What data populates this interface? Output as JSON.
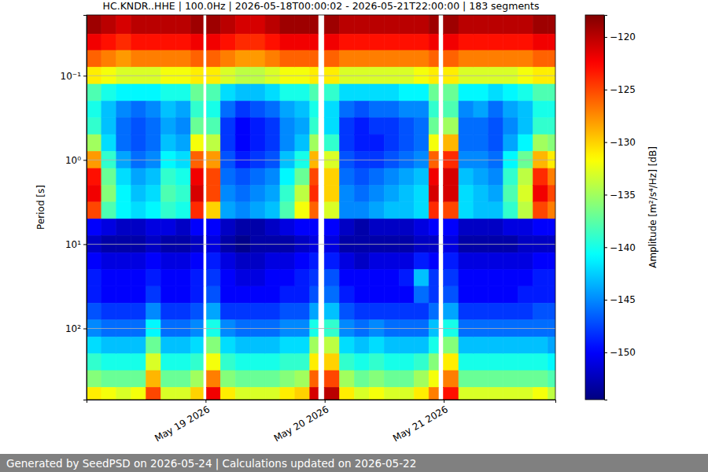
{
  "chart_data": {
    "type": "heatmap",
    "title": "HC.KNDR..HHE | 100.0Hz | 2026-05-18T00:00:02 - 2026-05-21T22:00:00 | 183 segments",
    "ylabel": "Period [s]",
    "footer": "Generated by SeedPSD on 2026-05-24 | Calculations updated on 2026-05-22",
    "log": "y",
    "grid": "y",
    "xlim": [
      "2026-05-18T00:00",
      "2026-05-21T22:30"
    ],
    "xticks": [
      {
        "value": "2026-05-19T00:00",
        "label": "May 19 2026"
      },
      {
        "value": "2026-05-20T00:00",
        "label": "May 20 2026"
      },
      {
        "value": "2026-05-21T00:00",
        "label": "May 21 2026"
      }
    ],
    "ylim": [
      0.019,
      700
    ],
    "yticks": [
      {
        "value": 0.1,
        "label": "10⁻¹"
      },
      {
        "value": 1,
        "label": "10⁰"
      },
      {
        "value": 10,
        "label": "10¹"
      },
      {
        "value": 100,
        "label": "10²"
      }
    ],
    "x": [
      "2026-05-18T00:00",
      "2026-05-18T03:00",
      "2026-05-18T06:00",
      "2026-05-18T09:00",
      "2026-05-18T12:00",
      "2026-05-18T15:00",
      "2026-05-18T18:00",
      "2026-05-18T21:00",
      "2026-05-18T23:30",
      "2026-05-19T00:10",
      "2026-05-19T03:00",
      "2026-05-19T06:00",
      "2026-05-19T09:00",
      "2026-05-19T12:00",
      "2026-05-19T15:00",
      "2026-05-19T18:00",
      "2026-05-19T21:00",
      "2026-05-19T22:40",
      "2026-05-19T23:55",
      "2026-05-20T03:00",
      "2026-05-20T06:00",
      "2026-05-20T09:00",
      "2026-05-20T12:00",
      "2026-05-20T15:00",
      "2026-05-20T18:00",
      "2026-05-20T21:00",
      "2026-05-20T22:55",
      "2026-05-20T23:55",
      "2026-05-21T03:00",
      "2026-05-21T06:00",
      "2026-05-21T09:00",
      "2026-05-21T12:00",
      "2026-05-21T15:00",
      "2026-05-21T18:00",
      "2026-05-21T21:00",
      "2026-05-21T22:30"
    ],
    "y": [
      0.019,
      0.032,
      0.05,
      0.079,
      0.126,
      0.2,
      0.316,
      0.5,
      0.79,
      1.26,
      2,
      3.16,
      5,
      7.9,
      12.6,
      20,
      31.6,
      50,
      79,
      126,
      200,
      316,
      500,
      700
    ],
    "values": [
      [
        -119,
        -122,
        -126,
        -131,
        -138,
        -140,
        -139,
        -135,
        -128,
        -123,
        -122,
        -125,
        -150,
        -152,
        -150,
        -149,
        -149,
        -147,
        -145,
        -142,
        -139,
        -136,
        -131
      ],
      [
        -120,
        -123,
        -127,
        -132,
        -140,
        -143,
        -143,
        -142,
        -139,
        -137,
        -136,
        -138,
        -151,
        -153,
        -151,
        -150,
        -150,
        -148,
        -146,
        -143,
        -140,
        -137,
        -132
      ],
      [
        -121,
        -124,
        -128,
        -133,
        -141,
        -145,
        -146,
        -146,
        -144,
        -142,
        -141,
        -141,
        -152,
        -153,
        -151,
        -150,
        -150,
        -148,
        -146,
        -143,
        -140,
        -137,
        -133
      ],
      [
        -120,
        -123,
        -127,
        -133,
        -141,
        -146,
        -147,
        -147,
        -146,
        -144,
        -143,
        -142,
        -152,
        -153,
        -151,
        -150,
        -150,
        -148,
        -146,
        -143,
        -140,
        -137,
        -132
      ],
      [
        -120,
        -123,
        -127,
        -133,
        -141,
        -145,
        -146,
        -146,
        -145,
        -143,
        -142,
        -141,
        -151,
        -152,
        -150,
        -149,
        -148,
        -145,
        -141,
        -137,
        -133,
        -129,
        -125
      ],
      [
        -120,
        -123,
        -127,
        -132,
        -140,
        -143,
        -144,
        -143,
        -141,
        -139,
        -138,
        -139,
        -151,
        -153,
        -151,
        -150,
        -150,
        -148,
        -146,
        -143,
        -140,
        -137,
        -133
      ],
      [
        -120,
        -123,
        -127,
        -132,
        -140,
        -144,
        -145,
        -144,
        -142,
        -140,
        -139,
        -140,
        -152,
        -153,
        -151,
        -150,
        -150,
        -148,
        -146,
        -143,
        -140,
        -137,
        -133
      ],
      [
        -119,
        -122,
        -126,
        -131,
        -137,
        -139,
        -137,
        -132,
        -126,
        -122,
        -121,
        -124,
        -150,
        -152,
        -150,
        -149,
        -149,
        -147,
        -145,
        -142,
        -139,
        -135,
        -130
      ],
      null,
      [
        -119,
        -122,
        -126,
        -131,
        -138,
        -140,
        -138,
        -134,
        -128,
        -125,
        -125,
        -130,
        -150,
        -151,
        -149,
        -148,
        -147,
        -144,
        -140,
        -136,
        -132,
        -127,
        -122
      ],
      [
        -120,
        -123,
        -127,
        -133,
        -142,
        -146,
        -148,
        -148,
        -147,
        -146,
        -145,
        -144,
        -152,
        -153,
        -151,
        -150,
        -150,
        -148,
        -145,
        -142,
        -139,
        -136,
        -131
      ],
      [
        -121,
        -124,
        -128,
        -134,
        -143,
        -148,
        -150,
        -150,
        -149,
        -147,
        -146,
        -145,
        -153,
        -154,
        -152,
        -151,
        -150,
        -148,
        -146,
        -143,
        -140,
        -137,
        -133
      ],
      [
        -121,
        -124,
        -128,
        -134,
        -143,
        -147,
        -149,
        -149,
        -148,
        -146,
        -145,
        -144,
        -153,
        -153,
        -152,
        -151,
        -150,
        -148,
        -146,
        -143,
        -140,
        -137,
        -133
      ],
      [
        -120,
        -123,
        -127,
        -133,
        -142,
        -146,
        -148,
        -148,
        -147,
        -145,
        -144,
        -143,
        -152,
        -153,
        -151,
        -150,
        -150,
        -148,
        -146,
        -143,
        -140,
        -137,
        -133
      ],
      [
        -119,
        -122,
        -126,
        -132,
        -140,
        -144,
        -145,
        -145,
        -143,
        -141,
        -139,
        -138,
        -151,
        -153,
        -151,
        -150,
        -149,
        -147,
        -145,
        -142,
        -139,
        -136,
        -131
      ],
      [
        -119,
        -122,
        -126,
        -132,
        -140,
        -143,
        -144,
        -143,
        -140,
        -137,
        -134,
        -132,
        -150,
        -152,
        -150,
        -149,
        -149,
        -147,
        -145,
        -142,
        -139,
        -135,
        -130
      ],
      [
        -119,
        -122,
        -126,
        -131,
        -138,
        -140,
        -139,
        -135,
        -129,
        -125,
        -124,
        -126,
        -150,
        -151,
        -149,
        -148,
        -147,
        -144,
        -140,
        -135,
        -131,
        -126,
        -121
      ],
      null,
      [
        -119,
        -122,
        -126,
        -131,
        -139,
        -142,
        -142,
        -139,
        -133,
        -130,
        -130,
        -133,
        -150,
        -151,
        -149,
        -147,
        -146,
        -143,
        -139,
        -134,
        -130,
        -125,
        -120
      ],
      [
        -120,
        -123,
        -127,
        -133,
        -142,
        -146,
        -148,
        -148,
        -147,
        -146,
        -145,
        -145,
        -152,
        -153,
        -151,
        -150,
        -149,
        -147,
        -145,
        -142,
        -139,
        -135,
        -131
      ],
      [
        -120,
        -123,
        -127,
        -133,
        -142,
        -147,
        -149,
        -149,
        -148,
        -147,
        -146,
        -145,
        -153,
        -153,
        -152,
        -150,
        -150,
        -148,
        -146,
        -143,
        -140,
        -137,
        -133
      ],
      [
        -120,
        -123,
        -127,
        -133,
        -142,
        -146,
        -148,
        -149,
        -148,
        -146,
        -145,
        -144,
        -152,
        -153,
        -151,
        -150,
        -150,
        -148,
        -145,
        -142,
        -139,
        -136,
        -132
      ],
      [
        -120,
        -123,
        -127,
        -133,
        -142,
        -146,
        -148,
        -148,
        -147,
        -145,
        -144,
        -143,
        -152,
        -153,
        -151,
        -150,
        -150,
        -148,
        -146,
        -143,
        -140,
        -137,
        -133
      ],
      [
        -120,
        -123,
        -127,
        -133,
        -141,
        -145,
        -147,
        -147,
        -146,
        -144,
        -143,
        -143,
        -152,
        -153,
        -151,
        -149,
        -150,
        -148,
        -146,
        -143,
        -140,
        -137,
        -133
      ],
      [
        -120,
        -123,
        -127,
        -132,
        -141,
        -145,
        -146,
        -146,
        -145,
        -143,
        -142,
        -142,
        -151,
        -152,
        -149,
        -143,
        -146,
        -148,
        -146,
        -143,
        -139,
        -135,
        -131
      ],
      [
        -119,
        -122,
        -126,
        -131,
        -137,
        -139,
        -137,
        -132,
        -126,
        -122,
        -121,
        -124,
        -150,
        -152,
        -150,
        -148,
        -148,
        -146,
        -143,
        -140,
        -136,
        -132,
        -127
      ],
      null,
      [
        -119,
        -122,
        -126,
        -131,
        -137,
        -138,
        -135,
        -129,
        -124,
        -121,
        -121,
        -125,
        -150,
        -151,
        -149,
        -148,
        -147,
        -144,
        -140,
        -136,
        -131,
        -127,
        -123
      ],
      [
        -120,
        -123,
        -127,
        -133,
        -141,
        -145,
        -146,
        -146,
        -145,
        -143,
        -142,
        -142,
        -152,
        -153,
        -151,
        -150,
        -150,
        -148,
        -146,
        -143,
        -140,
        -137,
        -133
      ],
      [
        -120,
        -123,
        -127,
        -133,
        -141,
        -144,
        -146,
        -146,
        -145,
        -144,
        -143,
        -143,
        -152,
        -153,
        -151,
        -150,
        -150,
        -148,
        -146,
        -143,
        -140,
        -137,
        -133
      ],
      [
        -120,
        -123,
        -127,
        -133,
        -142,
        -146,
        -147,
        -147,
        -146,
        -145,
        -144,
        -143,
        -152,
        -153,
        -151,
        -150,
        -150,
        -148,
        -146,
        -143,
        -140,
        -137,
        -133
      ],
      [
        -120,
        -123,
        -127,
        -133,
        -141,
        -144,
        -145,
        -144,
        -141,
        -139,
        -138,
        -139,
        -151,
        -153,
        -151,
        -150,
        -150,
        -148,
        -146,
        -143,
        -140,
        -137,
        -133
      ],
      [
        -120,
        -123,
        -127,
        -132,
        -140,
        -143,
        -143,
        -141,
        -137,
        -134,
        -133,
        -134,
        -151,
        -152,
        -151,
        -150,
        -149,
        -148,
        -146,
        -143,
        -140,
        -137,
        -133
      ],
      [
        -119,
        -122,
        -126,
        -131,
        -138,
        -140,
        -139,
        -135,
        -129,
        -124,
        -122,
        -125,
        -150,
        -152,
        -150,
        -149,
        -149,
        -147,
        -146,
        -143,
        -140,
        -137,
        -132
      ],
      [
        -119,
        -122,
        -126,
        -131,
        -138,
        -140,
        -139,
        -136,
        -131,
        -127,
        -125,
        -127,
        -150,
        -152,
        -150,
        -149,
        -149,
        -147,
        -146,
        -144,
        -141,
        -138,
        -134
      ]
    ],
    "colorbar": {
      "label": "Amplitude [m²/s⁴/Hz] [dB]",
      "range": [
        -154.5,
        -117.9
      ],
      "ticks": [
        {
          "value": -120,
          "label": "−120"
        },
        {
          "value": -125,
          "label": "−125"
        },
        {
          "value": -130,
          "label": "−130"
        },
        {
          "value": -135,
          "label": "−135"
        },
        {
          "value": -140,
          "label": "−140"
        },
        {
          "value": -145,
          "label": "−145"
        },
        {
          "value": -150,
          "label": "−150"
        }
      ]
    }
  }
}
